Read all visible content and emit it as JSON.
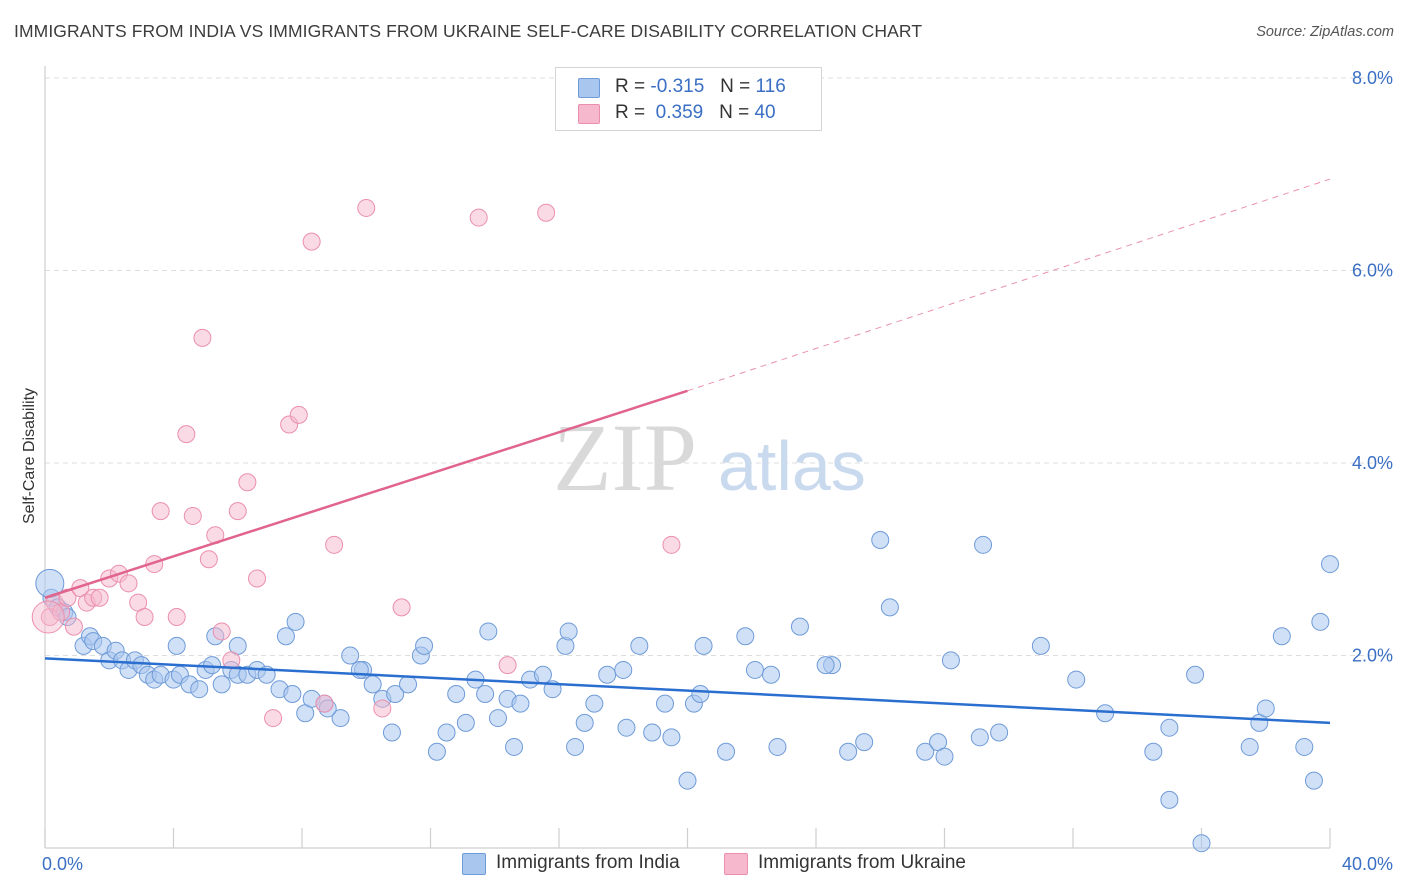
{
  "title": "IMMIGRANTS FROM INDIA VS IMMIGRANTS FROM UKRAINE SELF-CARE DISABILITY CORRELATION CHART",
  "source": "Source: ZipAtlas.com",
  "watermark": {
    "zip": "ZIP",
    "atlas": "atlas"
  },
  "legend": {
    "india": {
      "r_label": "R =",
      "r_value": "-0.315",
      "n_label": "N =",
      "n_value": "116"
    },
    "ukraine": {
      "r_label": "R =",
      "r_value": "0.359",
      "n_label": "N =",
      "n_value": "40"
    }
  },
  "bottom_legend": {
    "india": "Immigrants from India",
    "ukraine": "Immigrants from Ukraine"
  },
  "colors": {
    "india_fill": "#a9c6ef",
    "india_stroke": "#6f9bd8",
    "india_line": "#2a6fcf",
    "ukraine_fill": "#f6b8cc",
    "ukraine_stroke": "#eb8fad",
    "ukraine_line": "#e0648e",
    "tick_label": "#3a6fc4",
    "grid": "#dddddd"
  },
  "chart_data": {
    "type": "scatter",
    "title": "IMMIGRANTS FROM INDIA VS IMMIGRANTS FROM UKRAINE SELF-CARE DISABILITY CORRELATION CHART",
    "xlabel": "",
    "ylabel": "Self-Care Disability",
    "xlim": [
      0,
      40
    ],
    "ylim": [
      0,
      8
    ],
    "x_tick_labels": [
      "0.0%",
      "40.0%"
    ],
    "y_ticks": [
      2,
      4,
      6,
      8
    ],
    "y_tick_labels": [
      "2.0%",
      "4.0%",
      "6.0%",
      "8.0%"
    ],
    "grid": "horizontal dashed",
    "legend_position": "top-center",
    "series": [
      {
        "name": "Immigrants from India",
        "R": -0.315,
        "N": 116,
        "trend": {
          "x": [
            0,
            40
          ],
          "y": [
            1.97,
            1.3
          ]
        },
        "points": [
          [
            0.2,
            2.6
          ],
          [
            0.4,
            2.5
          ],
          [
            0.6,
            2.45
          ],
          [
            0.7,
            2.4
          ],
          [
            1.2,
            2.1
          ],
          [
            1.4,
            2.2
          ],
          [
            1.5,
            2.15
          ],
          [
            1.8,
            2.1
          ],
          [
            2.0,
            1.95
          ],
          [
            2.2,
            2.05
          ],
          [
            2.4,
            1.95
          ],
          [
            2.6,
            1.85
          ],
          [
            2.8,
            1.95
          ],
          [
            3.0,
            1.9
          ],
          [
            3.2,
            1.8
          ],
          [
            3.4,
            1.75
          ],
          [
            3.6,
            1.8
          ],
          [
            4.0,
            1.75
          ],
          [
            4.2,
            1.8
          ],
          [
            4.5,
            1.7
          ],
          [
            4.8,
            1.65
          ],
          [
            5.0,
            1.85
          ],
          [
            5.2,
            1.9
          ],
          [
            5.5,
            1.7
          ],
          [
            5.8,
            1.85
          ],
          [
            6.0,
            1.8
          ],
          [
            6.3,
            1.8
          ],
          [
            6.6,
            1.85
          ],
          [
            6.9,
            1.8
          ],
          [
            7.3,
            1.65
          ],
          [
            7.7,
            1.6
          ],
          [
            8.1,
            1.4
          ],
          [
            8.3,
            1.55
          ],
          [
            8.7,
            1.5
          ],
          [
            9.2,
            1.35
          ],
          [
            9.5,
            2.0
          ],
          [
            9.9,
            1.85
          ],
          [
            10.2,
            1.7
          ],
          [
            10.5,
            1.55
          ],
          [
            10.9,
            1.6
          ],
          [
            11.3,
            1.7
          ],
          [
            11.7,
            2.0
          ],
          [
            12.2,
            1.0
          ],
          [
            12.5,
            1.2
          ],
          [
            12.8,
            1.6
          ],
          [
            13.1,
            1.3
          ],
          [
            13.4,
            1.75
          ],
          [
            13.7,
            1.6
          ],
          [
            14.1,
            1.35
          ],
          [
            14.4,
            1.55
          ],
          [
            14.8,
            1.5
          ],
          [
            15.1,
            1.75
          ],
          [
            15.5,
            1.8
          ],
          [
            15.8,
            1.65
          ],
          [
            16.2,
            2.1
          ],
          [
            16.5,
            1.05
          ],
          [
            16.8,
            1.3
          ],
          [
            17.1,
            1.5
          ],
          [
            17.5,
            1.8
          ],
          [
            18.1,
            1.25
          ],
          [
            18.5,
            2.1
          ],
          [
            18.9,
            1.2
          ],
          [
            19.3,
            1.5
          ],
          [
            20.0,
            0.7
          ],
          [
            20.2,
            1.5
          ],
          [
            20.4,
            1.6
          ],
          [
            21.2,
            1.0
          ],
          [
            21.8,
            2.2
          ],
          [
            22.1,
            1.85
          ],
          [
            22.6,
            1.8
          ],
          [
            23.5,
            2.3
          ],
          [
            24.5,
            1.9
          ],
          [
            25.0,
            1.0
          ],
          [
            25.5,
            1.1
          ],
          [
            26.3,
            2.5
          ],
          [
            27.4,
            1.0
          ],
          [
            27.8,
            1.1
          ],
          [
            28.0,
            0.95
          ],
          [
            29.1,
            1.15
          ],
          [
            29.7,
            1.2
          ],
          [
            31.0,
            2.1
          ],
          [
            32.1,
            1.75
          ],
          [
            33.0,
            1.4
          ],
          [
            34.5,
            1.0
          ],
          [
            35.0,
            0.5
          ],
          [
            35.8,
            1.8
          ],
          [
            36.0,
            0.05
          ],
          [
            37.5,
            1.05
          ],
          [
            37.8,
            1.3
          ],
          [
            38.0,
            1.45
          ],
          [
            38.5,
            2.2
          ],
          [
            39.2,
            1.05
          ],
          [
            39.5,
            0.7
          ],
          [
            39.7,
            2.35
          ],
          [
            40.0,
            2.95
          ],
          [
            35.0,
            1.25
          ],
          [
            29.2,
            3.15
          ],
          [
            26.0,
            3.2
          ],
          [
            28.2,
            1.95
          ],
          [
            24.3,
            1.9
          ],
          [
            20.5,
            2.1
          ],
          [
            18.0,
            1.85
          ],
          [
            16.3,
            2.25
          ],
          [
            13.8,
            2.25
          ],
          [
            11.8,
            2.1
          ],
          [
            9.8,
            1.85
          ],
          [
            7.5,
            2.2
          ],
          [
            7.8,
            2.35
          ],
          [
            6.0,
            2.1
          ],
          [
            5.3,
            2.2
          ],
          [
            4.1,
            2.1
          ],
          [
            8.8,
            1.45
          ],
          [
            10.8,
            1.2
          ],
          [
            14.6,
            1.05
          ],
          [
            19.5,
            1.15
          ],
          [
            22.8,
            1.05
          ]
        ]
      },
      {
        "name": "Immigrants from Ukraine",
        "R": 0.359,
        "N": 40,
        "trend": {
          "x": [
            0,
            20
          ],
          "y": [
            2.6,
            4.75
          ]
        },
        "trend_dashed": {
          "x": [
            20,
            40
          ],
          "y": [
            4.75,
            6.95
          ]
        },
        "points": [
          [
            0.15,
            2.4
          ],
          [
            0.3,
            2.55
          ],
          [
            0.5,
            2.45
          ],
          [
            0.7,
            2.6
          ],
          [
            0.9,
            2.3
          ],
          [
            1.1,
            2.7
          ],
          [
            1.3,
            2.55
          ],
          [
            1.5,
            2.6
          ],
          [
            1.7,
            2.6
          ],
          [
            2.0,
            2.8
          ],
          [
            2.3,
            2.85
          ],
          [
            2.6,
            2.75
          ],
          [
            2.9,
            2.55
          ],
          [
            3.1,
            2.4
          ],
          [
            3.4,
            2.95
          ],
          [
            3.6,
            3.5
          ],
          [
            4.1,
            2.4
          ],
          [
            4.4,
            4.3
          ],
          [
            4.6,
            3.45
          ],
          [
            4.9,
            5.3
          ],
          [
            5.1,
            3.0
          ],
          [
            5.3,
            3.25
          ],
          [
            5.5,
            2.25
          ],
          [
            5.8,
            1.95
          ],
          [
            6.0,
            3.5
          ],
          [
            6.3,
            3.8
          ],
          [
            6.6,
            2.8
          ],
          [
            7.1,
            1.35
          ],
          [
            7.6,
            4.4
          ],
          [
            7.9,
            4.5
          ],
          [
            8.3,
            6.3
          ],
          [
            8.7,
            1.5
          ],
          [
            9.0,
            3.15
          ],
          [
            10.0,
            6.65
          ],
          [
            10.5,
            1.45
          ],
          [
            11.1,
            2.5
          ],
          [
            13.5,
            6.55
          ],
          [
            14.4,
            1.9
          ],
          [
            15.6,
            6.6
          ],
          [
            19.5,
            3.15
          ]
        ]
      }
    ]
  }
}
